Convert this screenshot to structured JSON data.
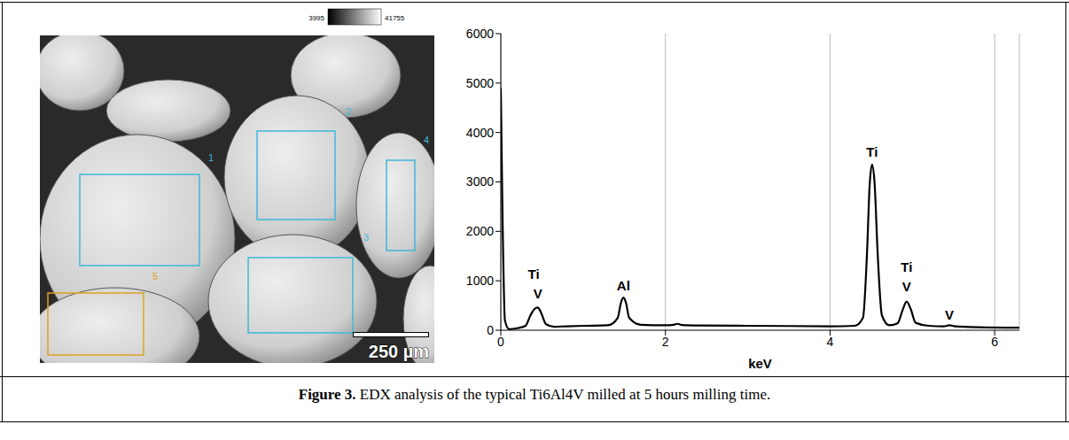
{
  "figure": {
    "caption_label": "Figure 3.",
    "caption_text": "EDX analysis of the typical Ti6Al4V milled at 5 hours milling time."
  },
  "image": {
    "colorbar": {
      "min": 3995,
      "max": 41755
    },
    "regions": [
      "1",
      "2",
      "3",
      "4",
      "5"
    ],
    "scale_bar": "250 µm"
  },
  "chart_data": {
    "type": "line",
    "x": [
      0,
      0.02,
      0.05,
      0.1,
      0.2,
      0.3,
      0.36,
      0.41,
      0.45,
      0.49,
      0.55,
      0.65,
      0.8,
      1.0,
      1.3,
      1.42,
      1.46,
      1.49,
      1.52,
      1.56,
      1.7,
      2.0,
      2.1,
      2.15,
      2.2,
      2.4,
      3.0,
      3.5,
      4.0,
      4.3,
      4.4,
      4.45,
      4.48,
      4.51,
      4.54,
      4.58,
      4.63,
      4.72,
      4.82,
      4.88,
      4.93,
      4.98,
      5.04,
      5.2,
      5.38,
      5.45,
      5.52,
      5.8,
      6.3
    ],
    "values": [
      4900,
      2400,
      200,
      20,
      40,
      90,
      300,
      430,
      460,
      350,
      120,
      70,
      80,
      90,
      100,
      250,
      560,
      660,
      560,
      250,
      110,
      100,
      110,
      130,
      105,
      95,
      90,
      85,
      80,
      90,
      250,
      1600,
      2900,
      3350,
      3000,
      1500,
      300,
      100,
      140,
      400,
      580,
      430,
      150,
      90,
      80,
      100,
      80,
      60,
      50
    ],
    "color": "#000000",
    "xlabel": "keV",
    "xlim": [
      0,
      6.3
    ],
    "ylim": [
      0,
      6000
    ],
    "xticks": [
      0,
      2,
      4,
      6
    ],
    "yticks": [
      0,
      1000,
      2000,
      3000,
      4000,
      5000,
      6000
    ],
    "grid": true,
    "annotations": [
      {
        "text": "Ti",
        "x": 0.4,
        "y": 950
      },
      {
        "text": "V",
        "x": 0.45,
        "y": 560
      },
      {
        "text": "Al",
        "x": 1.49,
        "y": 720
      },
      {
        "text": "Ti",
        "x": 4.51,
        "y": 3420
      },
      {
        "text": "Ti",
        "x": 4.93,
        "y": 1090
      },
      {
        "text": "V",
        "x": 4.93,
        "y": 700
      },
      {
        "text": "V",
        "x": 5.45,
        "y": 120
      }
    ]
  }
}
